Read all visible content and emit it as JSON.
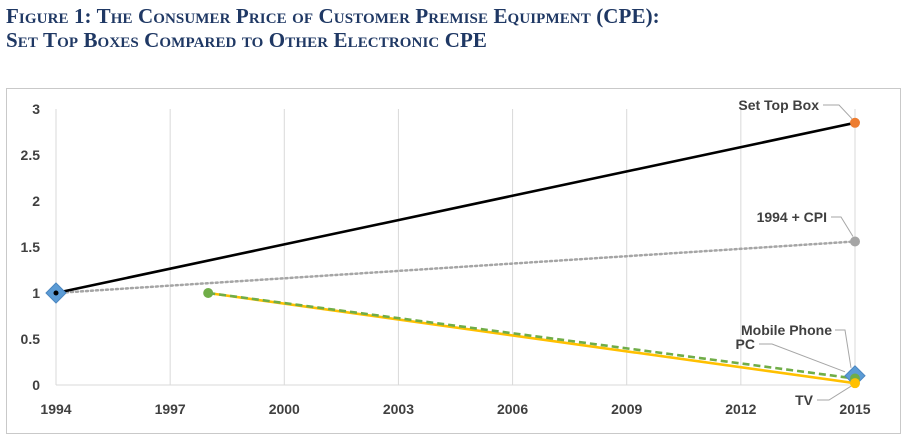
{
  "figure": {
    "title_line1": "Figure 1: The Consumer Price of Customer Premise Equipment (CPE):",
    "title_line2": "Set Top Boxes Compared to Other Electronic CPE"
  },
  "chart_data": {
    "type": "line",
    "xlim": [
      1994,
      2015
    ],
    "ylim": [
      0,
      3
    ],
    "x_ticks": [
      1994,
      1997,
      2000,
      2003,
      2006,
      2009,
      2012,
      2015
    ],
    "y_ticks": [
      "0",
      "0.5",
      "1",
      "1.5",
      "2",
      "2.5",
      "3"
    ],
    "grid": "vertical",
    "colors": {
      "set_top_box": "#000000",
      "set_top_box_marker": "#ed7d31",
      "cpi": "#a5a5a5",
      "pc": "#70ad47",
      "tv": "#ffc000",
      "mobile": "#5b9bd5",
      "grid": "#d9d9d9"
    },
    "series": [
      {
        "name": "Set Top Box",
        "x": [
          1994,
          2015
        ],
        "y": [
          1.0,
          2.85
        ],
        "style": "solid"
      },
      {
        "name": "1994 + CPI",
        "x": [
          1994,
          2015
        ],
        "y": [
          1.0,
          1.56
        ],
        "style": "dotted"
      },
      {
        "name": "TV",
        "x": [
          1998,
          2015
        ],
        "y": [
          1.0,
          0.02
        ],
        "style": "solid"
      },
      {
        "name": "PC",
        "x": [
          1998,
          2015
        ],
        "y": [
          1.0,
          0.07
        ],
        "style": "dashed"
      },
      {
        "name": "Mobile Phone",
        "x": [
          1994,
          2015
        ],
        "y": [
          1.0,
          0.1
        ],
        "style": "markers-only"
      }
    ]
  }
}
